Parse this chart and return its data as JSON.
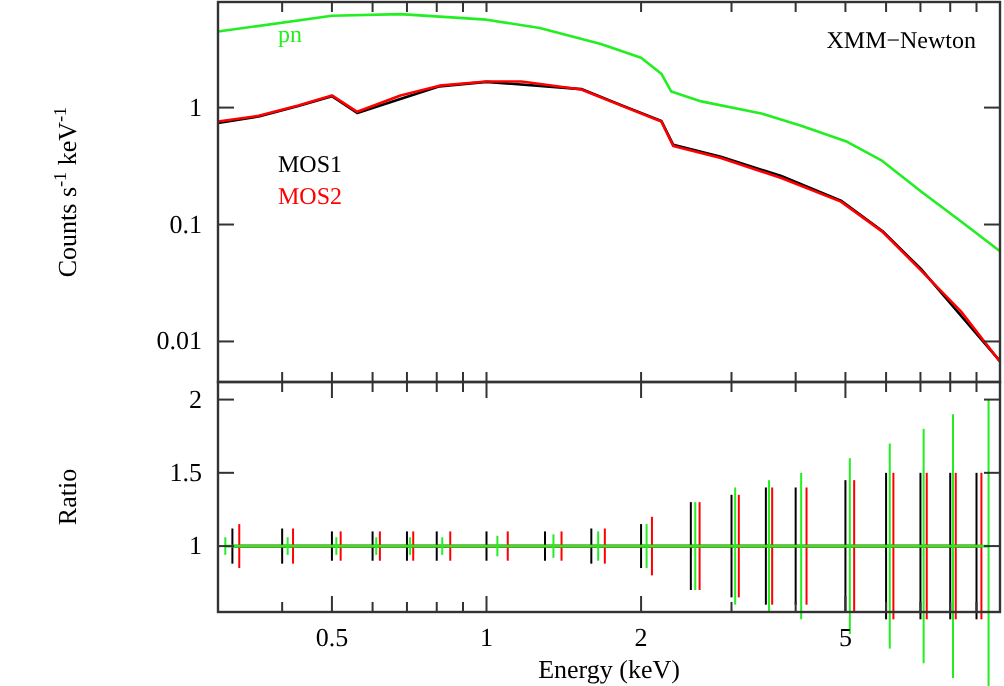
{
  "chart_data": [
    {
      "type": "line",
      "ylabel": "Counts s$^{-1}$ keV$^{-1}$",
      "log": "xy",
      "xlim": [
        0.3,
        10
      ],
      "ylim": [
        0.0045,
        8
      ],
      "xticks": [
        {
          "value": 0.4,
          "label": null
        },
        {
          "value": 0.5,
          "label": null
        },
        {
          "value": 0.6,
          "label": null
        },
        {
          "value": 0.7,
          "label": null
        },
        {
          "value": 0.8,
          "label": null
        },
        {
          "value": 0.9,
          "label": null
        },
        {
          "value": 1,
          "label": null
        },
        {
          "value": 2,
          "label": null
        },
        {
          "value": 3,
          "label": null
        },
        {
          "value": 4,
          "label": null
        },
        {
          "value": 5,
          "label": null
        },
        {
          "value": 6,
          "label": null
        },
        {
          "value": 7,
          "label": null
        },
        {
          "value": 8,
          "label": null
        },
        {
          "value": 9,
          "label": null
        }
      ],
      "yticks": [
        0.01,
        0.1,
        1
      ],
      "tick_labels": "y",
      "legend": "top left",
      "annotations": [
        "XMM−Newton"
      ],
      "series": [
        {
          "name": "pn",
          "color": "#22ee22",
          "x": [
            0.3,
            0.5,
            0.68,
            1,
            1.27,
            1.67,
            2,
            2.19,
            2.29,
            2.62,
            3.43,
            4.1,
            5.04,
            5.9,
            7.04,
            8.4,
            10
          ],
          "values": [
            4.47,
            6.1,
            6.3,
            5.65,
            4.8,
            3.5,
            2.67,
            1.95,
            1.37,
            1.13,
            0.89,
            0.7,
            0.51,
            0.35,
            0.19,
            0.106,
            0.059
          ]
        },
        {
          "name": "MOS1",
          "color": "#000000",
          "x": [
            0.3,
            0.36,
            0.43,
            0.5,
            0.56,
            0.68,
            0.81,
            1,
            1.17,
            1.53,
            1.83,
            2.19,
            2.31,
            2.86,
            3.75,
            4.9,
            5.9,
            7.04,
            8.4,
            10
          ],
          "values": [
            0.74,
            0.84,
            1.03,
            1.25,
            0.9,
            null,
            1.52,
            1.66,
            null,
            1.44,
            1.05,
            0.77,
            0.48,
            0.38,
            0.26,
            0.16,
            0.088,
            0.041,
            null,
            0.0068
          ]
        },
        {
          "name": "MOS2",
          "color": "#ff0000",
          "x": [
            0.3,
            0.36,
            0.43,
            0.5,
            0.56,
            0.68,
            0.81,
            1,
            1.17,
            1.53,
            1.83,
            2.19,
            2.31,
            2.86,
            3.75,
            4.9,
            5.9,
            7.04,
            8.4,
            10
          ],
          "values": [
            0.76,
            0.85,
            1.04,
            1.27,
            0.92,
            1.27,
            1.54,
            1.67,
            1.67,
            1.43,
            1.04,
            0.76,
            0.47,
            0.37,
            0.25,
            0.157,
            0.087,
            0.04,
            0.018,
            0.0067
          ]
        }
      ]
    },
    {
      "type": "line",
      "xlabel": "Energy (keV)",
      "ylabel": "Ratio",
      "log": "x",
      "xlim": [
        0.3,
        10
      ],
      "ylim": [
        0.55,
        2.12
      ],
      "xticks": [
        {
          "value": 0.4,
          "label": null
        },
        0.5,
        {
          "value": 0.6,
          "label": null
        },
        {
          "value": 0.7,
          "label": null
        },
        {
          "value": 0.8,
          "label": null
        },
        {
          "value": 0.9,
          "label": null
        },
        1,
        2,
        {
          "value": 3,
          "label": null
        },
        {
          "value": 4,
          "label": null
        },
        5,
        {
          "value": 6,
          "label": null
        },
        {
          "value": 7,
          "label": null
        },
        {
          "value": 8,
          "label": null
        },
        {
          "value": 9,
          "label": null
        }
      ],
      "yticks": [
        1,
        1.5,
        2
      ],
      "series": [
        {
          "color": "#000000",
          "x": [
            0.32,
            0.4,
            0.5,
            0.6,
            0.7,
            0.8,
            1,
            1.3,
            1.6,
            2,
            2.5,
            3,
            3.5,
            4,
            5,
            6,
            7,
            8,
            9
          ],
          "values": [
            1,
            1,
            1,
            1,
            1,
            1,
            1,
            1,
            1,
            1,
            1,
            1,
            1,
            1,
            1,
            1,
            1,
            1,
            1
          ],
          "errors": [
            0.12,
            0.12,
            0.1,
            0.1,
            0.1,
            0.1,
            0.1,
            0.1,
            0.12,
            0.15,
            0.3,
            0.35,
            0.4,
            0.4,
            0.45,
            0.5,
            0.5,
            0.5,
            0.5
          ]
        },
        {
          "color": "#ff0000",
          "x": [
            0.33,
            0.42,
            0.52,
            0.62,
            0.72,
            0.85,
            1.1,
            1.4,
            1.7,
            2.1,
            2.6,
            3.1,
            3.6,
            4.2,
            5.2,
            6.2,
            7.2,
            8.2,
            9.2
          ],
          "values": [
            1,
            1,
            1,
            1,
            1,
            1,
            1,
            1,
            1,
            1,
            1,
            1,
            1,
            1,
            1,
            1,
            1,
            1,
            1
          ],
          "errors": [
            0.15,
            0.12,
            0.1,
            0.1,
            0.1,
            0.1,
            0.1,
            0.1,
            0.12,
            0.2,
            0.3,
            0.35,
            0.4,
            0.4,
            0.45,
            0.5,
            0.5,
            0.5,
            0.5
          ]
        },
        {
          "color": "#22ee22",
          "x": [
            0.31,
            0.41,
            0.51,
            0.61,
            0.71,
            0.82,
            1.05,
            1.35,
            1.65,
            2.05,
            2.55,
            3.05,
            3.55,
            4.1,
            5.1,
            6.1,
            7.1,
            8.1,
            9.5
          ],
          "values": [
            1,
            1,
            1,
            1,
            1,
            1,
            1,
            1,
            1,
            1,
            1,
            1,
            1,
            1,
            1,
            1,
            1,
            1,
            1
          ],
          "errors": [
            0.06,
            0.06,
            0.06,
            0.06,
            0.06,
            0.06,
            0.07,
            0.08,
            0.1,
            0.15,
            0.3,
            0.4,
            0.45,
            0.5,
            0.6,
            0.7,
            0.8,
            0.9,
            1.0
          ]
        }
      ]
    }
  ]
}
